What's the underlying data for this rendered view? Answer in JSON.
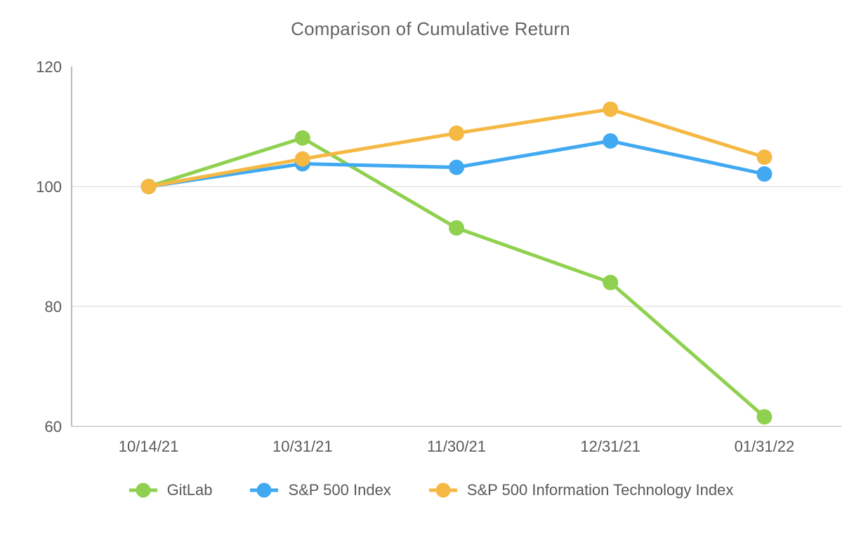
{
  "chart_data": {
    "type": "line",
    "title": "Comparison of Cumulative Return",
    "categories": [
      "10/14/21",
      "10/31/21",
      "11/30/21",
      "12/31/21",
      "01/31/22"
    ],
    "series": [
      {
        "name": "GitLab",
        "color": "#8FD14F",
        "values": [
          100.0,
          108.1,
          93.1,
          84.0,
          61.6
        ]
      },
      {
        "name": "S&P 500 Index",
        "color": "#41A9F1",
        "values": [
          100.0,
          103.8,
          103.2,
          107.6,
          102.1
        ]
      },
      {
        "name": "S&P 500 Information Technology Index",
        "color": "#F5B843",
        "values": [
          100.0,
          104.6,
          108.9,
          112.9,
          104.9
        ]
      }
    ],
    "yticks": [
      60,
      80,
      100,
      120
    ],
    "gridline_values": [
      80,
      100
    ],
    "ylim": [
      60,
      120
    ],
    "xlabel": "",
    "ylabel": "",
    "grid": true,
    "legend_position": "bottom",
    "marker": "circle",
    "line_width": 5,
    "marker_radius": 11
  },
  "style": {
    "text_color": "#595959",
    "title_color": "#646464",
    "axis_line_color": "#a3a3a3",
    "baseline_color": "#c9c9c9",
    "gridline_color": "#ebebeb",
    "background": "#ffffff"
  }
}
